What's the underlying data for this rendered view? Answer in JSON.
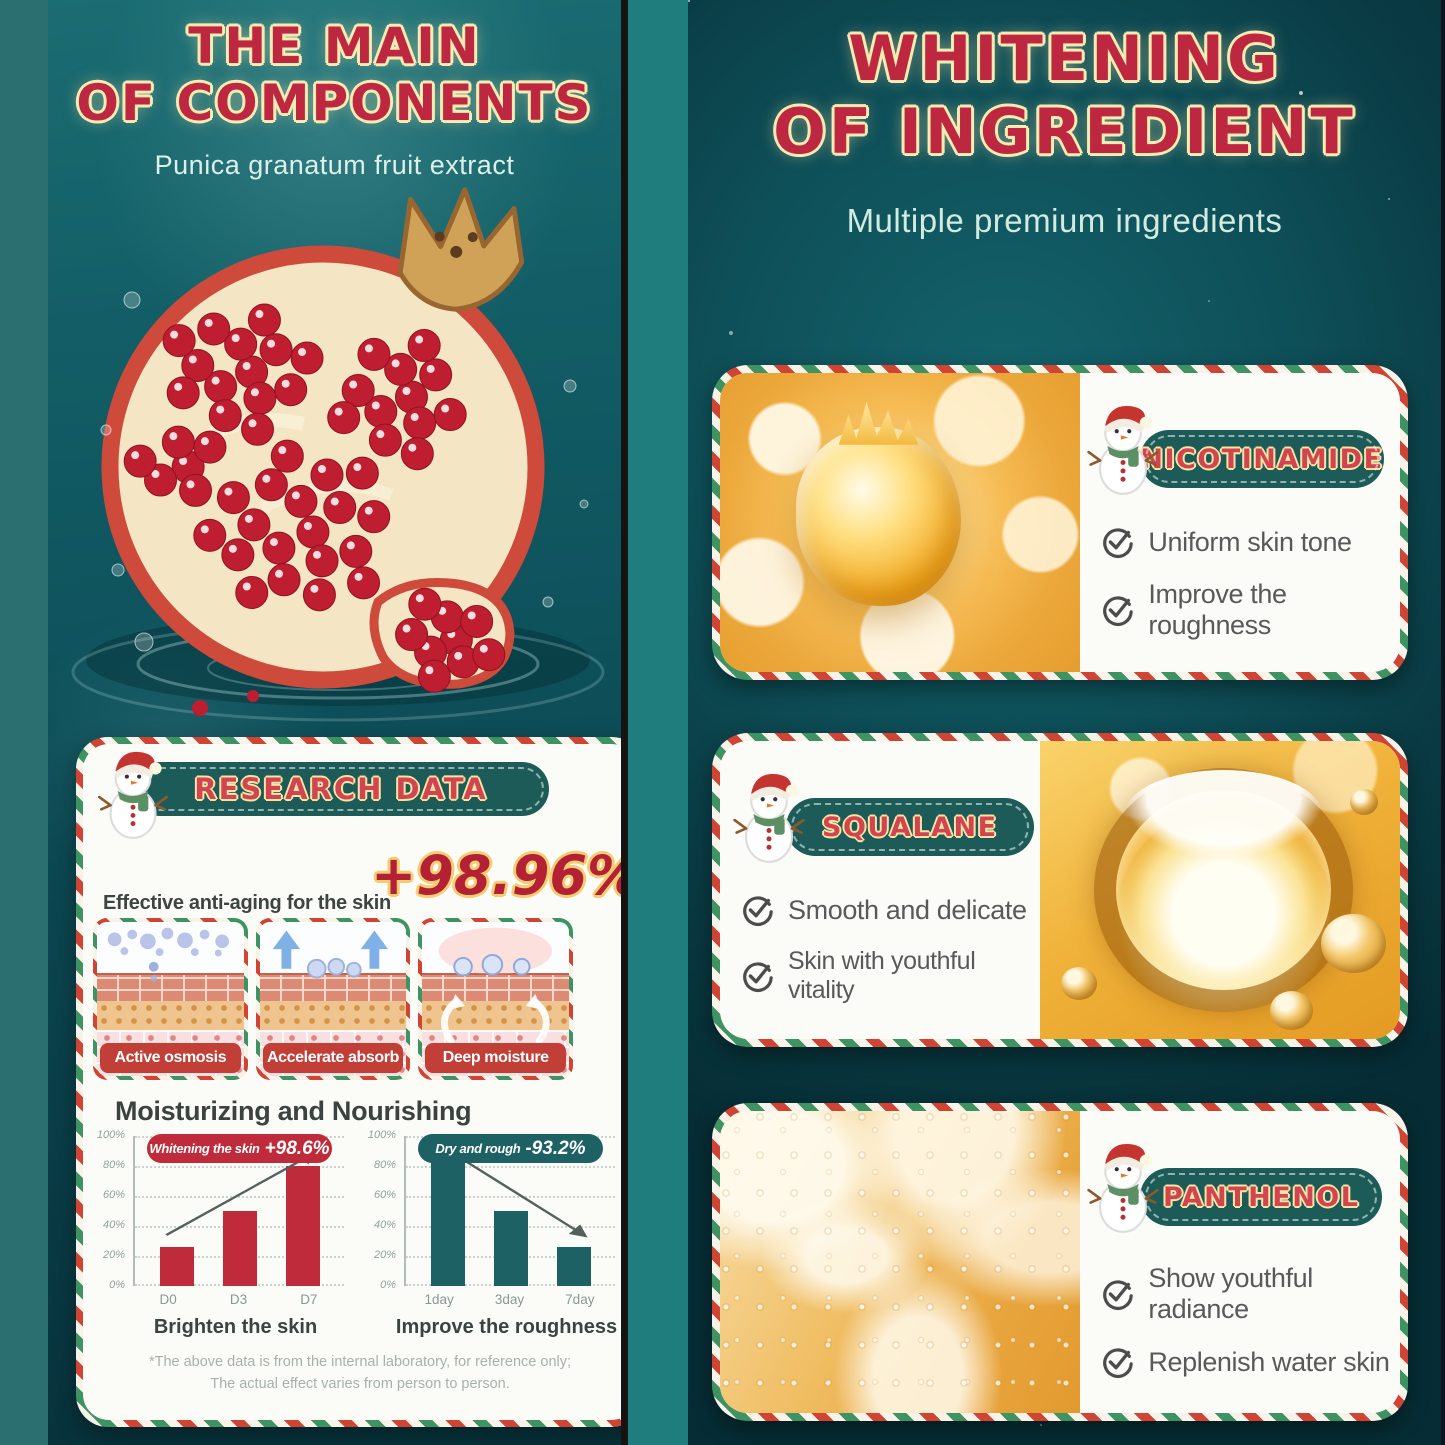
{
  "left_panel": {
    "title_line1": "THE MAIN",
    "title_line2": "OF COMPONENTS",
    "subtitle": "Punica granatum fruit extract",
    "research_card": {
      "badge_label": "RESEARCH DATA",
      "claim_text": "Effective anti-aging for the skin",
      "claim_value": "+98.96%",
      "tiles": [
        {
          "label": "Active osmosis"
        },
        {
          "label": "Accelerate absorb"
        },
        {
          "label": "Deep moisture"
        }
      ],
      "section_heading": "Moisturizing and Nourishing",
      "footnote_line1": "*The above data is from the internal laboratory, for reference only;",
      "footnote_line2": "The actual effect varies from person to person."
    }
  },
  "chart_data": [
    {
      "type": "bar",
      "title": "Whitening the skin +98.6%",
      "title_text": "Whitening the skin",
      "title_value": "+98.6%",
      "categories": [
        "D0",
        "D3",
        "D7"
      ],
      "values": [
        26,
        50,
        80
      ],
      "yticks": [
        "100%",
        "80%",
        "60%",
        "40%",
        "20%",
        "0%"
      ],
      "ylim": [
        0,
        100
      ],
      "grid": true,
      "legend": "none",
      "bar_color": "#bf2b3a",
      "trend": "up",
      "caption": "Brighten the skin"
    },
    {
      "type": "bar",
      "title": "Dry and rough -93.2%",
      "title_text": "Dry and rough",
      "title_value": "-93.2%",
      "categories": [
        "1day",
        "3day",
        "7day"
      ],
      "values": [
        87,
        50,
        26
      ],
      "yticks": [
        "100%",
        "80%",
        "60%",
        "40%",
        "20%",
        "0%"
      ],
      "ylim": [
        0,
        100
      ],
      "grid": true,
      "legend": "none",
      "bar_color": "#1d6164",
      "trend": "down",
      "caption": "Improve the roughness"
    }
  ],
  "right_panel": {
    "title_line1": "WHITENING",
    "title_line2": "OF INGREDIENT",
    "subtitle": "Multiple premium ingredients",
    "cards": [
      {
        "name": "NICOTINAMIDE",
        "image_side": "left",
        "benefits": [
          "Uniform skin tone",
          "Improve the roughness"
        ]
      },
      {
        "name": "SQUALANE",
        "image_side": "right",
        "benefits": [
          "Smooth and delicate",
          "Skin with youthful vitality"
        ]
      },
      {
        "name": "PANTHENOL",
        "image_side": "left",
        "benefits": [
          "Show youthful radiance",
          "Replenish water skin"
        ]
      }
    ]
  },
  "icons": {
    "snowman": "snowman-santa-hat-icon",
    "check": "circled-check-icon"
  },
  "colors": {
    "title_red": "#bd2840",
    "outline_cream": "#f8ecb4",
    "badge_teal": "#1d5b58",
    "candy_red": "#cf4433",
    "candy_green": "#3f9362",
    "bar_red": "#bf2b3a",
    "bar_teal": "#1d6164",
    "banner_red": "#c23f38",
    "panel_teal_left": "#0e525c",
    "panel_teal_right": "#0a3d46"
  }
}
